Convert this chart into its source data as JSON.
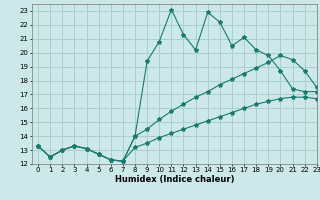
{
  "xlabel": "Humidex (Indice chaleur)",
  "bg_color": "#cce8e8",
  "grid_color": "#aacfcf",
  "line_color": "#1a7a6e",
  "xlim": [
    -0.5,
    23
  ],
  "ylim": [
    12,
    23.5
  ],
  "xticks": [
    0,
    1,
    2,
    3,
    4,
    5,
    6,
    7,
    8,
    9,
    10,
    11,
    12,
    13,
    14,
    15,
    16,
    17,
    18,
    19,
    20,
    21,
    22,
    23
  ],
  "yticks": [
    12,
    13,
    14,
    15,
    16,
    17,
    18,
    19,
    20,
    21,
    22,
    23
  ],
  "series": {
    "jagged": {
      "x": [
        0,
        1,
        2,
        3,
        4,
        5,
        6,
        7,
        8,
        9,
        10,
        11,
        12,
        13,
        14,
        15,
        16,
        17,
        18,
        19,
        20,
        21,
        22,
        23
      ],
      "y": [
        13.3,
        12.5,
        13.0,
        13.3,
        13.1,
        12.7,
        12.3,
        12.2,
        14.0,
        19.4,
        20.8,
        23.1,
        21.3,
        20.2,
        22.9,
        22.2,
        20.5,
        21.1,
        20.2,
        19.8,
        18.7,
        17.4,
        17.2,
        17.2
      ]
    },
    "mid": {
      "x": [
        0,
        1,
        2,
        3,
        4,
        5,
        6,
        7,
        8,
        9,
        10,
        11,
        12,
        13,
        14,
        15,
        16,
        17,
        18,
        19,
        20,
        21,
        22,
        23
      ],
      "y": [
        13.3,
        12.5,
        13.0,
        13.3,
        13.1,
        12.7,
        12.3,
        12.2,
        14.0,
        14.5,
        15.2,
        15.8,
        16.3,
        16.8,
        17.2,
        17.7,
        18.1,
        18.5,
        18.9,
        19.3,
        19.8,
        19.5,
        18.7,
        17.5
      ]
    },
    "min": {
      "x": [
        0,
        1,
        2,
        3,
        4,
        5,
        6,
        7,
        8,
        9,
        10,
        11,
        12,
        13,
        14,
        15,
        16,
        17,
        18,
        19,
        20,
        21,
        22,
        23
      ],
      "y": [
        13.3,
        12.5,
        13.0,
        13.3,
        13.1,
        12.7,
        12.3,
        12.2,
        13.2,
        13.5,
        13.9,
        14.2,
        14.5,
        14.8,
        15.1,
        15.4,
        15.7,
        16.0,
        16.3,
        16.5,
        16.7,
        16.8,
        16.8,
        16.7
      ]
    }
  }
}
